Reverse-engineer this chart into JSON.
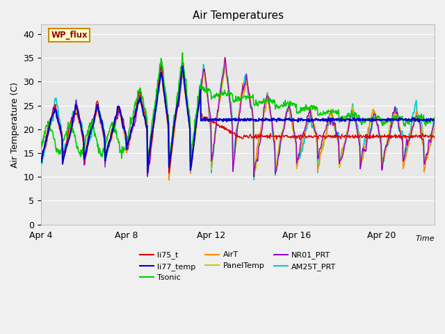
{
  "title": "Air Temperatures",
  "ylabel": "Air Temperature (C)",
  "xlabel_text": "Time",
  "ylim": [
    0,
    42
  ],
  "yticks": [
    0,
    5,
    10,
    15,
    20,
    25,
    30,
    35,
    40
  ],
  "xlim": [
    0,
    18.5
  ],
  "xtick_positions": [
    0,
    4,
    8,
    12,
    16
  ],
  "xtick_labels": [
    "Apr 4",
    "Apr 8",
    "Apr 12",
    "Apr 16",
    "Apr 20"
  ],
  "plot_bg_color": "#e8e8e8",
  "fig_bg_color": "#f0f0f0",
  "grid_color": "#ffffff",
  "legend_entries": [
    {
      "label": "li75_t",
      "color": "#dd0000"
    },
    {
      "label": "li77_temp",
      "color": "#0000cc"
    },
    {
      "label": "Tsonic",
      "color": "#00cc00"
    },
    {
      "label": "AirT",
      "color": "#ff8800"
    },
    {
      "label": "PanelTemp",
      "color": "#cccc00"
    },
    {
      "label": "NR01_PRT",
      "color": "#9900cc"
    },
    {
      "label": "AM25T_PRT",
      "color": "#00cccc"
    }
  ],
  "annotation_label": "WP_flux",
  "annotation_color": "#990000",
  "annotation_bg": "#ffffcc",
  "annotation_border": "#cc8800"
}
